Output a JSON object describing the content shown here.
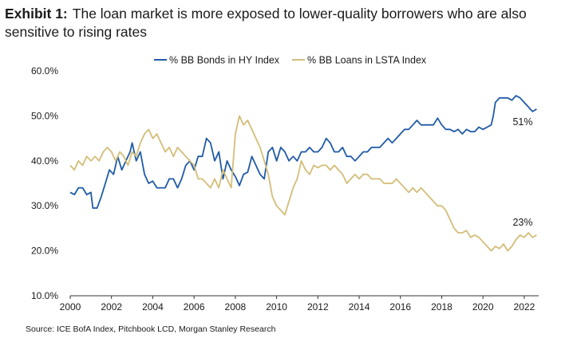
{
  "title": {
    "lead": "Exhibit 1:",
    "text": "The loan market is more exposed to lower-quality borrowers who are also sensitive to rising rates"
  },
  "source": "Source: ICE BofA Index, Pitchbook LCD, Morgan Stanley Research",
  "chart_data": {
    "type": "line",
    "title": "",
    "xlabel": "",
    "ylabel": "",
    "xlim": [
      2000,
      2022.7
    ],
    "ylim": [
      10,
      60
    ],
    "x_ticks": [
      "2000",
      "2002",
      "2004",
      "2006",
      "2008",
      "2010",
      "2012",
      "2014",
      "2016",
      "2018",
      "2020",
      "2022"
    ],
    "y_ticks": [
      "10.0%",
      "20.0%",
      "30.0%",
      "40.0%",
      "50.0%",
      "60.0%"
    ],
    "grid": false,
    "legend_position": "top-center",
    "series": [
      {
        "name": "% BB Bonds in HY Index",
        "color": "#1f5aa6",
        "end_label": "51%",
        "points": [
          [
            2000.0,
            33.0
          ],
          [
            2000.2,
            32.5
          ],
          [
            2000.4,
            34
          ],
          [
            2000.6,
            34
          ],
          [
            2000.8,
            32.5
          ],
          [
            2001.0,
            33
          ],
          [
            2001.1,
            29.5
          ],
          [
            2001.3,
            29.5
          ],
          [
            2001.5,
            32
          ],
          [
            2001.7,
            35
          ],
          [
            2001.9,
            38
          ],
          [
            2002.1,
            37
          ],
          [
            2002.3,
            41
          ],
          [
            2002.5,
            38
          ],
          [
            2002.7,
            40
          ],
          [
            2002.9,
            42
          ],
          [
            2003.0,
            44
          ],
          [
            2003.2,
            40
          ],
          [
            2003.4,
            42
          ],
          [
            2003.6,
            37
          ],
          [
            2003.8,
            35
          ],
          [
            2004.0,
            35.5
          ],
          [
            2004.2,
            34
          ],
          [
            2004.4,
            34
          ],
          [
            2004.6,
            34
          ],
          [
            2004.8,
            36
          ],
          [
            2005.0,
            36
          ],
          [
            2005.2,
            34
          ],
          [
            2005.4,
            36
          ],
          [
            2005.6,
            39
          ],
          [
            2005.8,
            40
          ],
          [
            2006.0,
            38
          ],
          [
            2006.2,
            41
          ],
          [
            2006.4,
            41
          ],
          [
            2006.6,
            45
          ],
          [
            2006.8,
            44
          ],
          [
            2007.0,
            40
          ],
          [
            2007.2,
            42
          ],
          [
            2007.4,
            36
          ],
          [
            2007.6,
            40
          ],
          [
            2007.8,
            38
          ],
          [
            2008.0,
            36.5
          ],
          [
            2008.2,
            34.5
          ],
          [
            2008.4,
            37
          ],
          [
            2008.6,
            37.5
          ],
          [
            2008.8,
            41
          ],
          [
            2009.0,
            39
          ],
          [
            2009.2,
            37
          ],
          [
            2009.4,
            36
          ],
          [
            2009.6,
            42
          ],
          [
            2009.8,
            43
          ],
          [
            2010.0,
            40
          ],
          [
            2010.2,
            43
          ],
          [
            2010.4,
            42
          ],
          [
            2010.6,
            40
          ],
          [
            2010.8,
            41
          ],
          [
            2011.0,
            40
          ],
          [
            2011.2,
            42
          ],
          [
            2011.4,
            42
          ],
          [
            2011.6,
            43
          ],
          [
            2011.8,
            42
          ],
          [
            2012.0,
            42
          ],
          [
            2012.2,
            43
          ],
          [
            2012.4,
            45
          ],
          [
            2012.6,
            44
          ],
          [
            2012.8,
            42
          ],
          [
            2013.0,
            42
          ],
          [
            2013.2,
            43
          ],
          [
            2013.4,
            41
          ],
          [
            2013.6,
            41
          ],
          [
            2013.8,
            40
          ],
          [
            2014.0,
            41
          ],
          [
            2014.2,
            42
          ],
          [
            2014.4,
            42
          ],
          [
            2014.6,
            43
          ],
          [
            2014.8,
            43
          ],
          [
            2015.0,
            43
          ],
          [
            2015.2,
            44
          ],
          [
            2015.4,
            45
          ],
          [
            2015.6,
            44
          ],
          [
            2015.8,
            45
          ],
          [
            2016.0,
            46
          ],
          [
            2016.2,
            47
          ],
          [
            2016.4,
            47
          ],
          [
            2016.6,
            48
          ],
          [
            2016.8,
            49
          ],
          [
            2017.0,
            48
          ],
          [
            2017.2,
            48
          ],
          [
            2017.4,
            48
          ],
          [
            2017.6,
            48
          ],
          [
            2017.8,
            49.5
          ],
          [
            2018.0,
            48
          ],
          [
            2018.2,
            47
          ],
          [
            2018.4,
            47
          ],
          [
            2018.6,
            46.5
          ],
          [
            2018.8,
            47
          ],
          [
            2019.0,
            46
          ],
          [
            2019.2,
            47
          ],
          [
            2019.4,
            46.5
          ],
          [
            2019.6,
            46.5
          ],
          [
            2019.8,
            47.5
          ],
          [
            2020.0,
            47
          ],
          [
            2020.2,
            47.5
          ],
          [
            2020.4,
            48
          ],
          [
            2020.5,
            50
          ],
          [
            2020.6,
            53
          ],
          [
            2020.8,
            54
          ],
          [
            2021.0,
            54
          ],
          [
            2021.2,
            54
          ],
          [
            2021.4,
            53.5
          ],
          [
            2021.6,
            54.5
          ],
          [
            2021.8,
            54
          ],
          [
            2022.0,
            53
          ],
          [
            2022.2,
            52
          ],
          [
            2022.4,
            51
          ],
          [
            2022.6,
            51.5
          ]
        ]
      },
      {
        "name": "% BB Loans in LSTA Index",
        "color": "#d3bd78",
        "end_label": "23%",
        "points": [
          [
            2000.0,
            39
          ],
          [
            2000.2,
            38
          ],
          [
            2000.4,
            40
          ],
          [
            2000.6,
            39
          ],
          [
            2000.8,
            41
          ],
          [
            2001.0,
            40
          ],
          [
            2001.2,
            41
          ],
          [
            2001.4,
            40
          ],
          [
            2001.6,
            42
          ],
          [
            2001.8,
            43
          ],
          [
            2002.0,
            42
          ],
          [
            2002.2,
            40
          ],
          [
            2002.4,
            42
          ],
          [
            2002.6,
            41
          ],
          [
            2002.8,
            39
          ],
          [
            2003.0,
            42
          ],
          [
            2003.2,
            41
          ],
          [
            2003.4,
            44
          ],
          [
            2003.6,
            46
          ],
          [
            2003.8,
            47
          ],
          [
            2004.0,
            45
          ],
          [
            2004.2,
            46
          ],
          [
            2004.4,
            44
          ],
          [
            2004.6,
            42
          ],
          [
            2004.8,
            43
          ],
          [
            2005.0,
            41
          ],
          [
            2005.2,
            43
          ],
          [
            2005.4,
            42
          ],
          [
            2005.6,
            41
          ],
          [
            2005.8,
            40
          ],
          [
            2006.0,
            39
          ],
          [
            2006.2,
            36
          ],
          [
            2006.4,
            36
          ],
          [
            2006.6,
            35
          ],
          [
            2006.8,
            34
          ],
          [
            2007.0,
            36
          ],
          [
            2007.2,
            34
          ],
          [
            2007.4,
            38
          ],
          [
            2007.6,
            36
          ],
          [
            2007.8,
            34
          ],
          [
            2008.0,
            46
          ],
          [
            2008.2,
            50
          ],
          [
            2008.4,
            48
          ],
          [
            2008.6,
            49
          ],
          [
            2008.8,
            47
          ],
          [
            2009.0,
            45
          ],
          [
            2009.2,
            43
          ],
          [
            2009.4,
            40
          ],
          [
            2009.6,
            37
          ],
          [
            2009.8,
            32
          ],
          [
            2010.0,
            30
          ],
          [
            2010.2,
            29
          ],
          [
            2010.4,
            28
          ],
          [
            2010.6,
            31
          ],
          [
            2010.8,
            34
          ],
          [
            2011.0,
            36
          ],
          [
            2011.2,
            40
          ],
          [
            2011.4,
            38
          ],
          [
            2011.6,
            37
          ],
          [
            2011.8,
            39
          ],
          [
            2012.0,
            38.5
          ],
          [
            2012.2,
            39
          ],
          [
            2012.4,
            39
          ],
          [
            2012.6,
            38
          ],
          [
            2012.8,
            39
          ],
          [
            2013.0,
            38
          ],
          [
            2013.2,
            37
          ],
          [
            2013.4,
            35
          ],
          [
            2013.6,
            36
          ],
          [
            2013.8,
            37
          ],
          [
            2014.0,
            36
          ],
          [
            2014.2,
            37
          ],
          [
            2014.4,
            37
          ],
          [
            2014.6,
            36
          ],
          [
            2014.8,
            36
          ],
          [
            2015.0,
            36
          ],
          [
            2015.2,
            35
          ],
          [
            2015.4,
            35
          ],
          [
            2015.6,
            35
          ],
          [
            2015.8,
            36
          ],
          [
            2016.0,
            35
          ],
          [
            2016.2,
            34
          ],
          [
            2016.4,
            33
          ],
          [
            2016.6,
            34
          ],
          [
            2016.8,
            33
          ],
          [
            2017.0,
            34
          ],
          [
            2017.2,
            33
          ],
          [
            2017.4,
            32
          ],
          [
            2017.6,
            31
          ],
          [
            2017.8,
            30
          ],
          [
            2018.0,
            30
          ],
          [
            2018.2,
            29
          ],
          [
            2018.4,
            27
          ],
          [
            2018.6,
            25
          ],
          [
            2018.8,
            24
          ],
          [
            2019.0,
            24
          ],
          [
            2019.2,
            24.5
          ],
          [
            2019.4,
            23
          ],
          [
            2019.6,
            23.5
          ],
          [
            2019.8,
            23
          ],
          [
            2020.0,
            22
          ],
          [
            2020.2,
            21
          ],
          [
            2020.4,
            20
          ],
          [
            2020.6,
            21
          ],
          [
            2020.8,
            20.5
          ],
          [
            2021.0,
            21.5
          ],
          [
            2021.2,
            20
          ],
          [
            2021.4,
            21
          ],
          [
            2021.6,
            22.5
          ],
          [
            2021.8,
            23.5
          ],
          [
            2022.0,
            23
          ],
          [
            2022.2,
            24
          ],
          [
            2022.4,
            23
          ],
          [
            2022.6,
            23.5
          ]
        ]
      }
    ]
  }
}
